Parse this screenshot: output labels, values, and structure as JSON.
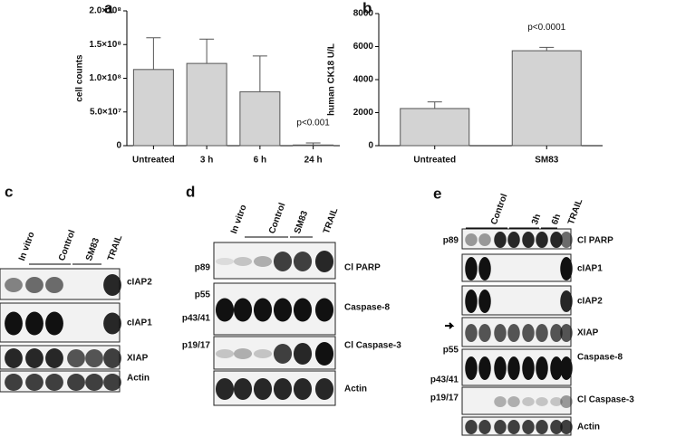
{
  "chart_data": [
    {
      "type": "bar",
      "panel": "a",
      "ylabel": "cell counts",
      "categories": [
        "Untreated",
        "3 h",
        "6 h",
        "24 h"
      ],
      "values": [
        113000000,
        122000000,
        80000000,
        1000000
      ],
      "errors": [
        47000000,
        36000000,
        53000000,
        3000000
      ],
      "color": "#d3d3d3",
      "ylim": [
        0,
        200000000
      ],
      "yticks": [
        {
          "value": 0,
          "label": "0"
        },
        {
          "value": 50000000,
          "label": "5.0×10⁷"
        },
        {
          "value": 100000000,
          "label": "1.0×10⁸"
        },
        {
          "value": 150000000,
          "label": "1.5×10⁸"
        },
        {
          "value": 200000000,
          "label": "2.0×10⁸"
        }
      ],
      "annotation": "p<0.001"
    },
    {
      "type": "bar",
      "panel": "b",
      "ylabel": "human CK18 U/L",
      "categories": [
        "Untreated",
        "SM83"
      ],
      "values": [
        2250,
        5750
      ],
      "errors": [
        400,
        200
      ],
      "color": "#d3d3d3",
      "ylim": [
        0,
        8000
      ],
      "yticks": [
        0,
        2000,
        4000,
        6000,
        8000
      ],
      "annotation": "p<0.0001"
    }
  ],
  "blots": [
    {
      "panel": "c",
      "lanes": [
        "In vitro",
        "Control",
        "SM83",
        "TRAIL"
      ],
      "left_labels": [],
      "right_labels": [
        "cIAP2",
        "cIAP1",
        "XIAP",
        "Actin"
      ]
    },
    {
      "panel": "d",
      "lanes": [
        "In vitro",
        "Control",
        "SM83",
        "TRAIL"
      ],
      "left_labels": [
        "p89",
        "p55",
        "p43/41",
        "p19/17"
      ],
      "right_labels": [
        "Cl PARP",
        "Caspase-8",
        "Cl Caspase-3",
        "Actin"
      ]
    },
    {
      "panel": "e",
      "lanes": [
        "Control",
        "3h",
        "6h",
        "TRAIL"
      ],
      "left_labels": [
        "p89",
        "p55",
        "p43/41",
        "p19/17"
      ],
      "right_labels": [
        "Cl PARP",
        "cIAP1",
        "cIAP2",
        "XIAP",
        "Caspase-8",
        "Cl Caspase-3",
        "Actin"
      ]
    }
  ]
}
